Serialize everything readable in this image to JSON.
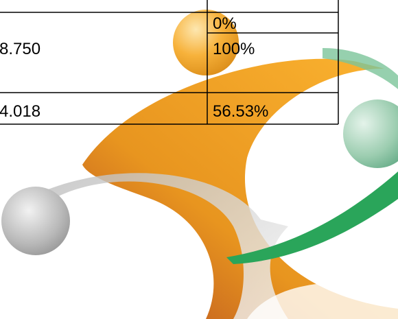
{
  "table": {
    "rows": [
      {
        "right": "0%"
      },
      {
        "left": "8.750",
        "right": "100%"
      },
      {
        "left": "4.018",
        "right": "56.53%"
      }
    ]
  }
}
